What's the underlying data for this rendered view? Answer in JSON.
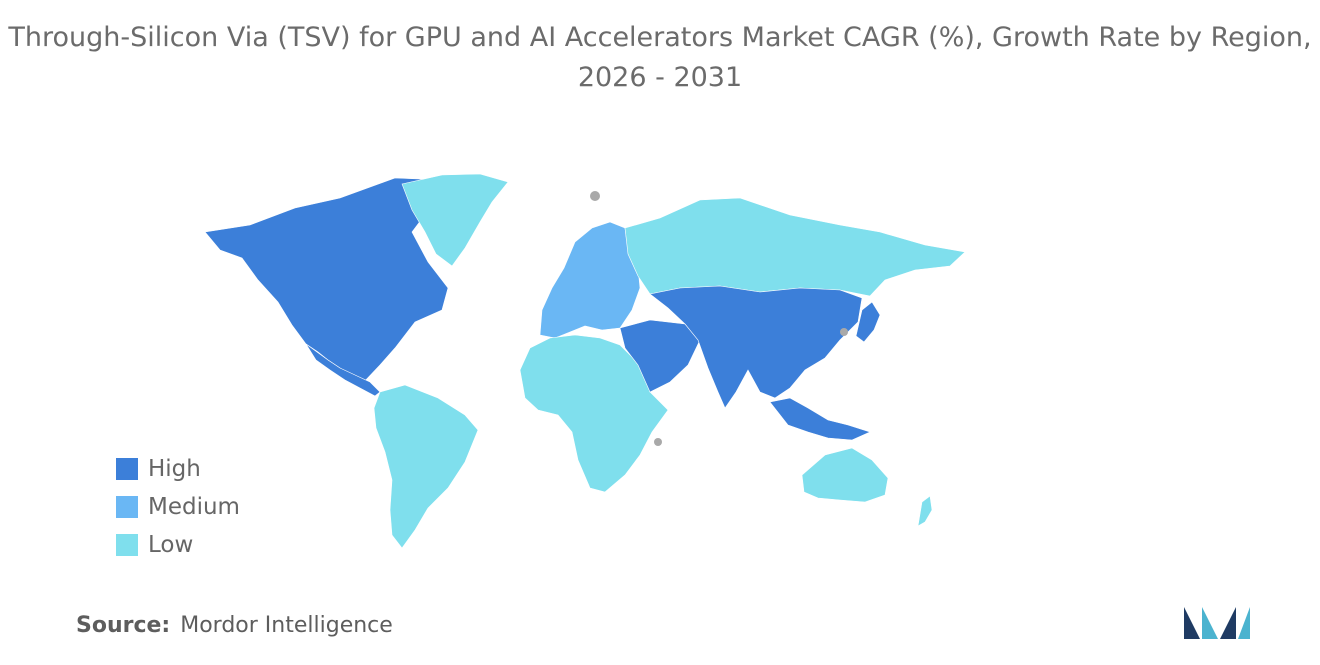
{
  "title": "Through-Silicon Via (TSV) for GPU and AI Accelerators Market CAGR (%), Growth Rate by Region, 2026 - 2031",
  "legend": [
    {
      "label": "High",
      "color": "#3c7fd9"
    },
    {
      "label": "Medium",
      "color": "#6ab7f4"
    },
    {
      "label": "Low",
      "color": "#7fdfed"
    }
  ],
  "no_data_color": "#a9a9a9",
  "regions": [
    {
      "name": "North America",
      "level": "High"
    },
    {
      "name": "Greenland",
      "level": "Low"
    },
    {
      "name": "South America",
      "level": "Low"
    },
    {
      "name": "Europe",
      "level": "Medium"
    },
    {
      "name": "Russia",
      "level": "Low"
    },
    {
      "name": "Africa",
      "level": "Low"
    },
    {
      "name": "Middle East",
      "level": "High"
    },
    {
      "name": "Asia",
      "level": "High"
    },
    {
      "name": "Southeast Asia",
      "level": "High"
    },
    {
      "name": "Japan",
      "level": "High"
    },
    {
      "name": "Australia",
      "level": "Low"
    },
    {
      "name": "New Zealand",
      "level": "Low"
    }
  ],
  "source": {
    "label": "Source:",
    "value": "Mordor Intelligence"
  },
  "logo_colors": [
    "#1f3b63",
    "#4bb3cf"
  ]
}
